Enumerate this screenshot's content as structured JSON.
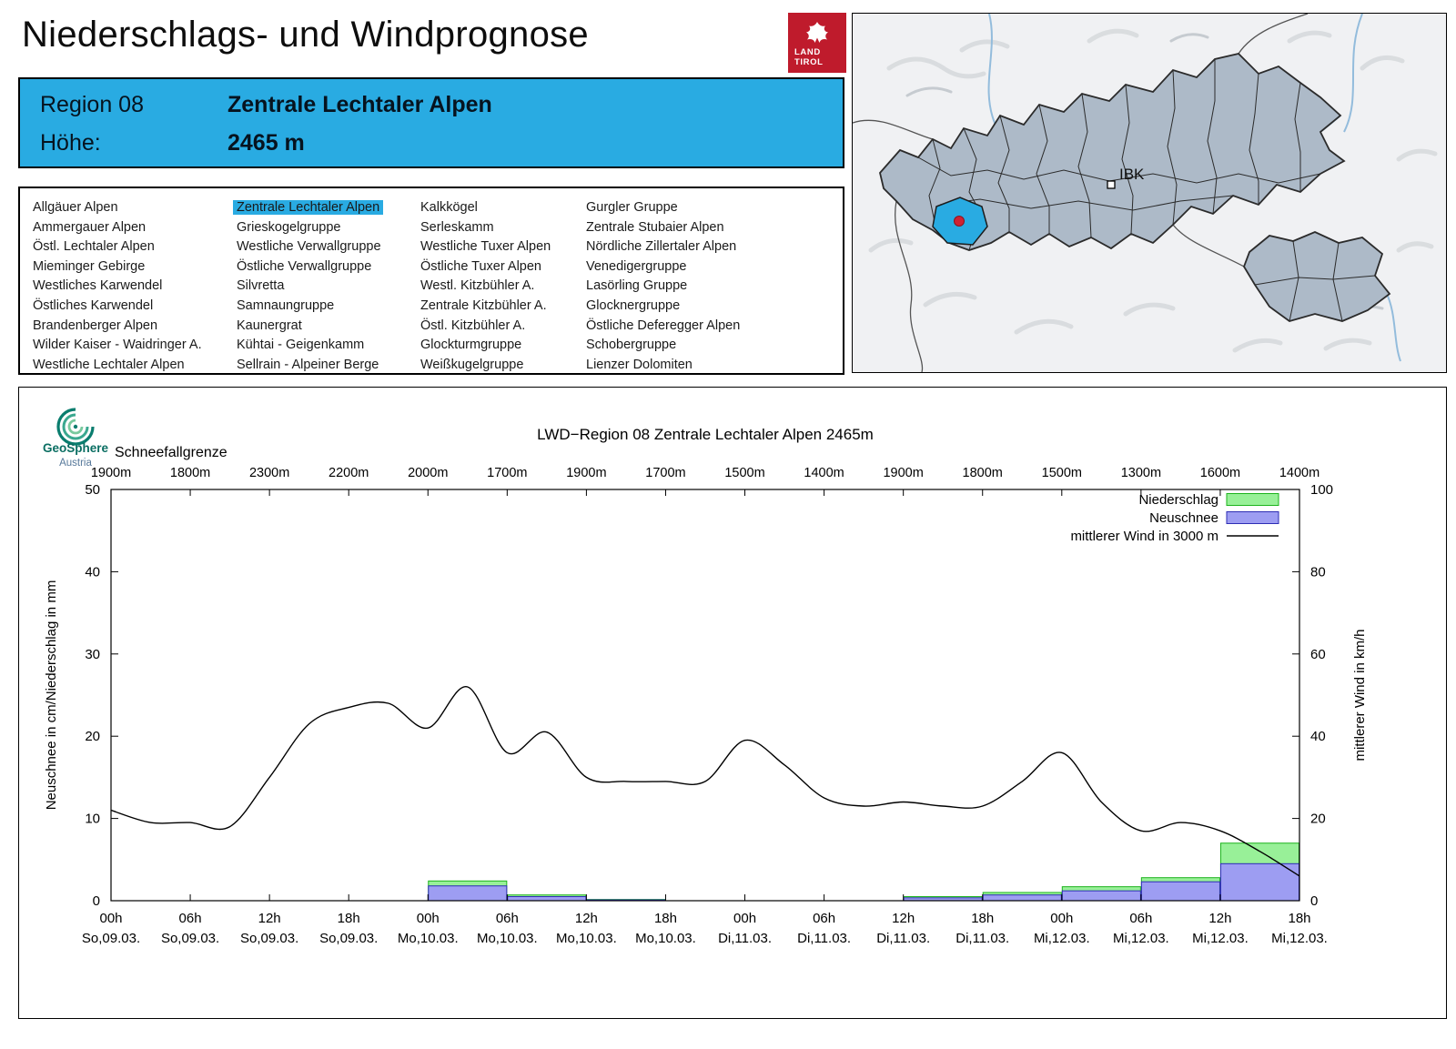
{
  "page": {
    "title": "Niederschlags- und Windprognose"
  },
  "logo": {
    "line1": "LAND",
    "line2": "TIROL",
    "color": "#bf1b2c"
  },
  "region_box": {
    "region_label": "Region 08",
    "region_name": "Zentrale Lechtaler Alpen",
    "hoehe_label": "Höhe:",
    "hoehe_value": "2465 m",
    "bg_color": "#29abe2"
  },
  "map": {
    "city_label": "IBK",
    "highlight_color": "#29abe2"
  },
  "region_list": {
    "selected": "Zentrale Lechtaler Alpen",
    "columns": [
      [
        "Allgäuer Alpen",
        "Ammergauer Alpen",
        "Östl. Lechtaler Alpen",
        "Mieminger Gebirge",
        "Westliches Karwendel",
        "Östliches Karwendel",
        "Brandenberger Alpen",
        "Wilder Kaiser - Waidringer A.",
        "Westliche Lechtaler Alpen"
      ],
      [
        "Zentrale Lechtaler Alpen",
        "Grieskogelgruppe",
        "Westliche Verwallgruppe",
        "Östliche Verwallgruppe",
        "Silvretta",
        "Samnaungruppe",
        "Kaunergrat",
        "Kühtai - Geigenkamm",
        "Sellrain - Alpeiner Berge"
      ],
      [
        "Kalkkögel",
        "Serleskamm",
        "Westliche Tuxer Alpen",
        "Östliche Tuxer Alpen",
        "Westl. Kitzbühler A.",
        "Zentrale Kitzbühler A.",
        "Östl. Kitzbühler A.",
        "Glockturmgruppe",
        "Weißkugelgruppe"
      ],
      [
        "Gurgler Gruppe",
        "Zentrale Stubaier Alpen",
        "Nördliche Zillertaler Alpen",
        "Venedigergruppe",
        "Lasörling Gruppe",
        "Glocknergruppe",
        "Östliche Deferegger Alpen",
        "Schobergruppe",
        "Lienzer Dolomiten"
      ]
    ]
  },
  "chart_data": {
    "type": "line+bar",
    "title": "LWD−Region 08 Zentrale Lechtaler Alpen 2465m",
    "branding": {
      "name": "GeoSphere",
      "sub": "Austria"
    },
    "schneefallgrenze_label": "Schneefallgrenze",
    "schneefallgrenze": [
      "1900m",
      "1800m",
      "2300m",
      "2200m",
      "2000m",
      "1700m",
      "1900m",
      "1700m",
      "1500m",
      "1400m",
      "1900m",
      "1800m",
      "1500m",
      "1300m",
      "1600m",
      "1400m"
    ],
    "x_hours": [
      "00h",
      "06h",
      "12h",
      "18h",
      "00h",
      "06h",
      "12h",
      "18h",
      "00h",
      "06h",
      "12h",
      "18h",
      "00h",
      "06h",
      "12h",
      "18h"
    ],
    "x_dates": [
      "So,09.03.",
      "So,09.03.",
      "So,09.03.",
      "So,09.03.",
      "Mo,10.03.",
      "Mo,10.03.",
      "Mo,10.03.",
      "Mo,10.03.",
      "Di,11.03.",
      "Di,11.03.",
      "Di,11.03.",
      "Di,11.03.",
      "Mi,12.03.",
      "Mi,12.03.",
      "Mi,12.03.",
      "Mi,12.03."
    ],
    "ylabel_left": "Neuschnee in cm/Niederschlag in mm",
    "ylabel_right": "mittlerer Wind in km/h",
    "ylim_left": [
      0,
      50
    ],
    "ylim_right": [
      0,
      100
    ],
    "yticks_left": [
      0,
      10,
      20,
      30,
      40,
      50
    ],
    "yticks_right": [
      0,
      20,
      40,
      60,
      80,
      100
    ],
    "colors": {
      "niederschlag_fill": "#98f098",
      "niederschlag_border": "#1db31d",
      "neuschnee_fill": "#9d9df2",
      "neuschnee_border": "#2d2db4",
      "wind_line": "#000000"
    },
    "legend": [
      {
        "label": "Niederschlag",
        "type": "box",
        "fill": "#98f098",
        "border": "#1db31d"
      },
      {
        "label": "Neuschnee",
        "type": "box",
        "fill": "#9d9df2",
        "border": "#2d2db4"
      },
      {
        "label": "mittlerer Wind in 3000 m",
        "type": "line",
        "fill": "#000000",
        "border": "#000000"
      }
    ],
    "bars_6h": {
      "start_hours": [
        0,
        6,
        12,
        18,
        24,
        30,
        36,
        42,
        48,
        54,
        60,
        66,
        72,
        78,
        84
      ],
      "niederschlag_mm": [
        0,
        0,
        0,
        0,
        2.4,
        0.7,
        0.15,
        0,
        0,
        0,
        0.5,
        1.0,
        1.7,
        2.8,
        7.0
      ],
      "neuschnee_cm": [
        0,
        0,
        0,
        0,
        1.8,
        0.5,
        0.1,
        0,
        0,
        0,
        0.35,
        0.7,
        1.2,
        2.3,
        4.5
      ]
    },
    "wind_3000m": {
      "hours_step": 3,
      "kmh": [
        22,
        19,
        19,
        18,
        30,
        43,
        47,
        48,
        42,
        52,
        36,
        41,
        30,
        29,
        29,
        29,
        39,
        33,
        25,
        23,
        24,
        23,
        23,
        29,
        36,
        24,
        17,
        19,
        17,
        12,
        6
      ]
    }
  }
}
